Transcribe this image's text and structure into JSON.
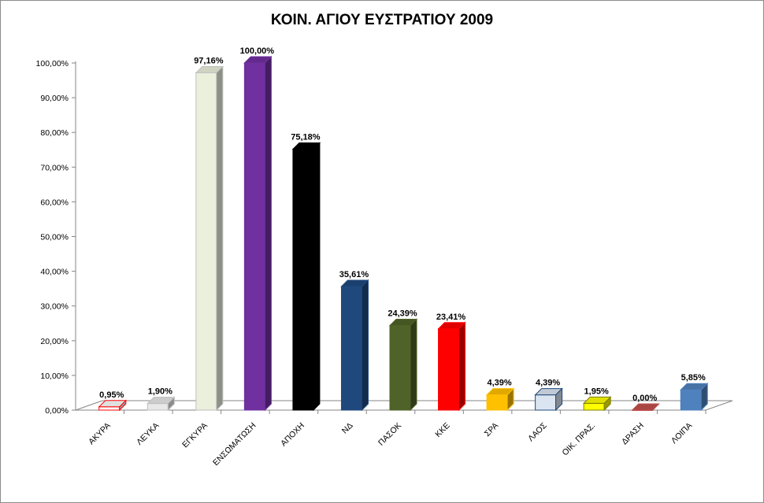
{
  "chart_data": {
    "type": "bar",
    "title": "ΚΟΙΝ. ΑΓΙΟΥ ΕΥΣΤΡΑΤΙΟΥ 2009",
    "xlabel": "",
    "ylabel": "",
    "ylim": [
      0,
      100
    ],
    "grid": false,
    "y_ticks": [
      0,
      10,
      20,
      30,
      40,
      50,
      60,
      70,
      80,
      90,
      100
    ],
    "y_tick_labels": [
      "0,00%",
      "10,00%",
      "20,00%",
      "30,00%",
      "40,00%",
      "50,00%",
      "60,00%",
      "70,00%",
      "80,00%",
      "90,00%",
      "100,00%"
    ],
    "categories": [
      "ΑΚΥΡΑ",
      "ΛΕΥΚΑ",
      "ΕΓΚΥΡΑ",
      "ΕΝΣΩΜΑΤΩΣΗ",
      "ΑΠΟΧΗ",
      "ΝΔ",
      "ΠΑΣΟΚ",
      "ΚΚΕ",
      "ΣΡΑ",
      "ΛΑΟΣ",
      "ΟΙΚ. ΠΡΑΣ.",
      "ΔΡΑΣΗ",
      "ΛΟΙΠΑ"
    ],
    "values": [
      0.95,
      1.9,
      97.16,
      100.0,
      75.18,
      35.61,
      24.39,
      23.41,
      4.39,
      4.39,
      1.95,
      0.0,
      5.85
    ],
    "value_labels": [
      "0,95%",
      "1,90%",
      "97,16%",
      "100,00%",
      "75,18%",
      "35,61%",
      "24,39%",
      "23,41%",
      "4,39%",
      "4,39%",
      "1,95%",
      "0,00%",
      "5,85%"
    ],
    "colors": [
      "#ffffff",
      "#e8e8e8",
      "#ebf0dc",
      "#7030a0",
      "#000000",
      "#1f497d",
      "#4f6228",
      "#ff0000",
      "#ffc000",
      "#dbe5f1",
      "#ffff00",
      "#c0504d",
      "#4f81bd"
    ],
    "outline_colors": [
      "#ff0000",
      "#bfbfbf",
      "#bfbfbf",
      "#7030a0",
      "#000000",
      "#1f497d",
      "#4f6228",
      "#ff0000",
      "#ffc000",
      "#1f497d",
      "#7f7f00",
      "#c0504d",
      "#4f81bd"
    ]
  }
}
